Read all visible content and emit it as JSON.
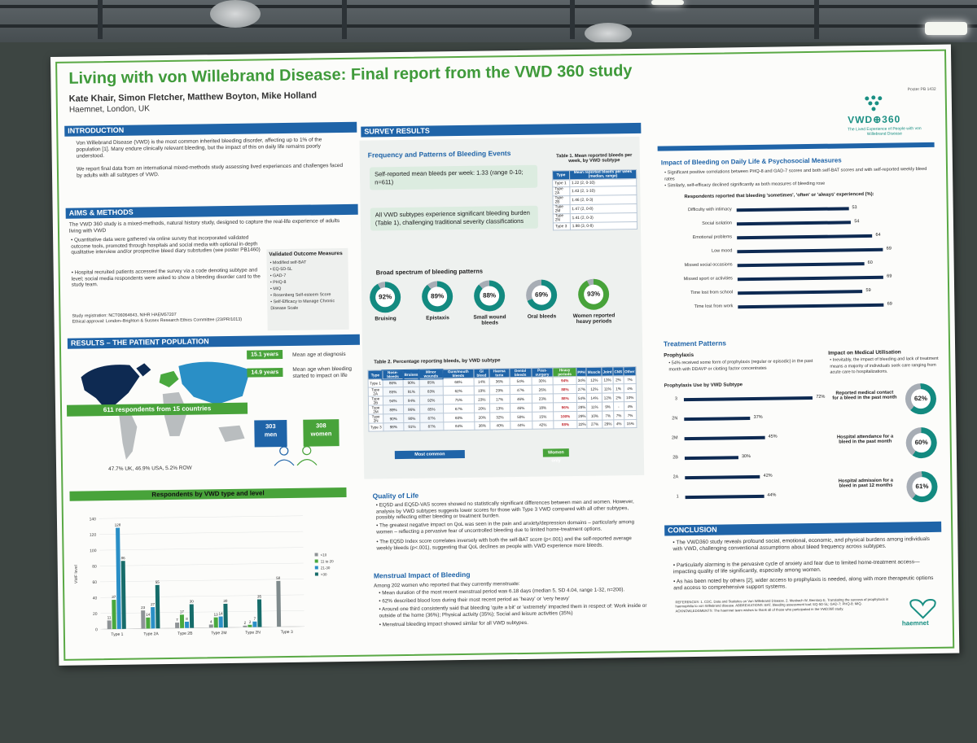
{
  "poster": {
    "title": "Living with von Willebrand Disease: Final report from the VWD 360 study",
    "authors": "Kate Khair, Simon Fletcher, Matthew Boyton, Mike Holland",
    "affiliation": "Haemnet, London, UK",
    "poster_id": "Poster PB 1432",
    "logo_text": "VWD⊕360",
    "logo_sub": "The Lived Experience of People with von Willebrand Disease",
    "accent_green": "#48a33a",
    "accent_blue": "#1f64a8"
  },
  "intro": {
    "heading": "INTRODUCTION",
    "p1": "Von Willebrand Disease (VWD) is the most common inherited bleeding disorder, affecting up to 1% of the population [1]. Many endure clinically relevant bleeding, but the impact of this on daily life remains poorly understood.",
    "p2": "We report final data from an international mixed-methods study assessing lived experiences and challenges faced by adults with all subtypes of VWD."
  },
  "aims": {
    "heading": "AIMS & METHODS",
    "p1": "The VWD 360 study is a mixed-methods, natural history study, designed to capture the real-life experience of adults living with VWD",
    "b1": "Quantitative data were gathered via online survey that incorporated validated outcome tools, promoted through hospitals and social media with optional in-depth qualitative interview and/or prospective bleed diary substudies (see poster PB1460)",
    "b2": "Hospital recruited patients accessed the survey via a code denoting subtype and level; social media respondents were asked to show a bleeding disorder card to the study team.",
    "measures_title": "Validated Outcome Measures",
    "measures": [
      "Modified self-BAT",
      "EQ-5D-5L",
      "GAD-7",
      "PHQ-8",
      "MIQ",
      "Rosenberg Self-esteem Score",
      "Self-Efficacy to Manage Chronic Disease Scale"
    ],
    "registration": "Study registration: NCT06064643, NIHR HAEM57207",
    "ethics": "Ethical approval: London–Brighton & Sussex Research Ethics Committee (23/PR/1013)"
  },
  "population": {
    "heading": "RESULTS – THE PATIENT POPULATION",
    "age_dx_value": "15.1 years",
    "age_dx_label": "Mean age at diagnosis",
    "age_impact_value": "14.9 years",
    "age_impact_label": "Mean age when bleeding started to impact on life",
    "respondents": "611 respondents from 15 countries",
    "men_n": "303",
    "men_label": "men",
    "women_n": "308",
    "women_label": "women",
    "split": "47.7% UK, 46.9% USA, 5.2% ROW"
  },
  "vwd_chart": {
    "heading": "Respondents by VWD type and level",
    "ylabel": "VWF level",
    "legend": [
      "<10",
      "11 to 20",
      "21-30",
      ">30"
    ],
    "colors": [
      "#8e9396",
      "#49a83e",
      "#2a8fc6",
      "#166c6a",
      "#7f8a8c"
    ],
    "categories": [
      "Type 1",
      "Type 2A",
      "Type 2B",
      "Type 2M",
      "Type 2N",
      "Type 3"
    ],
    "yticks": [
      "140",
      "120",
      "100",
      "80",
      "60",
      "40",
      "20",
      "0"
    ]
  },
  "chart_data": {
    "type": "bar",
    "title": "Respondents by VWD type and level",
    "ylabel": "VWF level",
    "categories": [
      "Type 1",
      "Type 2A",
      "Type 2B",
      "Type 2M",
      "Type 2N",
      "Type 3"
    ],
    "ylim": [
      0,
      140
    ],
    "legend_position": "right",
    "series": [
      {
        "name": "<10",
        "values": [
          11,
          23,
          7,
          4,
          2,
          58
        ]
      },
      {
        "name": "11 to 20",
        "values": [
          37,
          14,
          17,
          13,
          3,
          0
        ]
      },
      {
        "name": "21-30",
        "values": [
          128,
          27,
          8,
          14,
          7,
          0
        ]
      },
      {
        "name": ">30",
        "values": [
          86,
          55,
          30,
          30,
          35,
          0
        ]
      }
    ]
  },
  "survey": {
    "heading": "SURVEY RESULTS",
    "freq_title": "Frequency and Patterns of Bleeding Events",
    "box1": "Self-reported mean bleeds per week: 1.33 (range 0-10; n=611)",
    "box2": "All VWD subtypes experience significant bleeding burden (Table 1), challenging traditional severity classifications",
    "table1_title": "Table 1. Mean reported bleeds per week, by VWD subtype",
    "table1_head": [
      "Type",
      "Mean reported bleeds per week (median, range)"
    ],
    "table1_rows": [
      [
        "Type 1",
        "1.22 (2, 0-10)"
      ],
      [
        "Type 2A",
        "1.43 (2, 1-10)"
      ],
      [
        "Type 2B",
        "1.46 (2, 0-3)"
      ],
      [
        "Type 2M",
        "1.47 (2, 0-8)"
      ],
      [
        "Type 2N",
        "1.41 (2, 0-3)"
      ],
      [
        "Type 3",
        "1.98 (3, 0-8)"
      ]
    ],
    "spectrum_title": "Broad spectrum of bleeding patterns",
    "donuts": [
      {
        "value": "92%",
        "label": "Bruising",
        "pct": 92
      },
      {
        "value": "89%",
        "label": "Epistaxis",
        "pct": 89
      },
      {
        "value": "88%",
        "label": "Small wound bleeds",
        "pct": 88
      },
      {
        "value": "69%",
        "label": "Oral bleeds",
        "pct": 69
      },
      {
        "value": "93%",
        "label": "Women reported heavy periods",
        "pct": 93
      }
    ],
    "table2_title": "Table 2. Percentage reporting bleeds, by VWD subtype",
    "table2_head": [
      "Type",
      "Nose-bleeds",
      "Bruises",
      "Minor wounds",
      "Gum/mouth bleeds",
      "GI bleed",
      "Haema turia",
      "Dental bleeds",
      "Post-surgery",
      "Heavy periods",
      "PPH",
      "Muscle",
      "Joint",
      "CNS",
      "Other"
    ],
    "table2_rows": [
      [
        "Type 1",
        "86%",
        "90%",
        "85%",
        "66%",
        "14%",
        "36%",
        "54%",
        "30%",
        "94%",
        "34%",
        "12%",
        "13%",
        "2%",
        "7%"
      ],
      [
        "Type 2A",
        "85%",
        "91%",
        "83%",
        "62%",
        "19%",
        "29%",
        "47%",
        "26%",
        "88%",
        "27%",
        "12%",
        "11%",
        "1%",
        "4%"
      ],
      [
        "Type 2B",
        "94%",
        "94%",
        "92%",
        "75%",
        "23%",
        "17%",
        "46%",
        "23%",
        "88%",
        "54%",
        "14%",
        "12%",
        "2%",
        "10%"
      ],
      [
        "Type 2M",
        "89%",
        "96%",
        "85%",
        "67%",
        "20%",
        "13%",
        "46%",
        "18%",
        "96%",
        "28%",
        "11%",
        "9%",
        "-",
        "4%"
      ],
      [
        "Type 2N",
        "90%",
        "90%",
        "87%",
        "60%",
        "20%",
        "32%",
        "50%",
        "15%",
        "100%",
        "29%",
        "10%",
        "7%",
        "7%",
        "7%"
      ],
      [
        "Type 3",
        "98%",
        "91%",
        "87%",
        "84%",
        "38%",
        "40%",
        "44%",
        "42%",
        "88%",
        "22%",
        "27%",
        "29%",
        "4%",
        "15%"
      ]
    ],
    "most_common": "Most common",
    "women_only": "Women only"
  },
  "qol": {
    "heading": "Quality of Life",
    "b1": "EQ5D and EQ5D-VAS scores showed no statistically significant differences between men and women. However, analysis by VWD subtypes suggests lower scores for those with Type 3 VWD compared with all other subtypes, possibly reflecting either bleeding or treatment burden.",
    "b2": "The greatest negative impact on QoL was seen in the pain and anxiety/depression domains – particularly among women – reflecting a pervasive fear of uncontrolled bleeding due to limited home-treatment options.",
    "b3": "The EQ5D Index score correlates inversely with both the self-BAT score (p<.001) and the self-reported average weekly bleeds (p<.001), suggesting that QoL declines as people with VWD experience more bleeds."
  },
  "menstrual": {
    "heading": "Menstrual Impact of Bleeding",
    "intro": "Among 202 women who reported that they currently menstruate:",
    "b1": "Mean duration of the most recent menstrual period was 6.18 days (median 5, SD 4.04, range 1-32, n=200).",
    "b2": "62% described blood loss during their most recent period as 'heavy' or 'very heavy'",
    "b3": "Around one third consistently said that bleeding 'quite a bit' or 'extremely' impacted them in respect of: Work inside or outside of the home (36%); Physical activity (35%); Social and leisure activities (35%)",
    "b4": "Menstrual bleeding impact showed similar for all VWD subtypes."
  },
  "impact": {
    "heading": "Impact of Bleeding on Daily Life & Psychosocial Measures",
    "b1": "Significant positive correlations between PHQ-8 and GAD-7 scores and both self-BAT scores and with self-reported weekly bleed rates",
    "b2": "Similarly, self-efficacy declined significantly as both measures of bleeding rose",
    "chart_title": "Respondents reported that bleeding 'sometimes', 'often' or 'always' experienced (%):",
    "items": [
      {
        "label": "Difficulty with intimacy",
        "value": 53
      },
      {
        "label": "Social isolation",
        "value": 54
      },
      {
        "label": "Emotional problems",
        "value": 64
      },
      {
        "label": "Low mood",
        "value": 69
      },
      {
        "label": "Missed social occasions",
        "value": 60
      },
      {
        "label": "Missed sport or activities",
        "value": 69
      },
      {
        "label": "Time lost from school",
        "value": 59
      },
      {
        "label": "Time lost from work",
        "value": 69
      }
    ]
  },
  "treatment": {
    "heading": "Treatment Patterns",
    "proph_title": "Prophylaxis",
    "proph_b1": "54% received some form of prophylaxis (regular or episodic) in the past month with DDAVP or clotting factor concentrates",
    "proph_chart_title": "Prophylaxis Use by VWD Subtype",
    "proph": [
      {
        "label": "3",
        "value": 72,
        "text": "72%"
      },
      {
        "label": "2N",
        "value": 37,
        "text": "37%"
      },
      {
        "label": "2M",
        "value": 45,
        "text": "45%"
      },
      {
        "label": "2B",
        "value": 30,
        "text": "30%"
      },
      {
        "label": "2A",
        "value": 42,
        "text": "42%"
      },
      {
        "label": "1",
        "value": 44,
        "text": "44%"
      }
    ],
    "util_title": "Impact on Medical Utilisation",
    "util_b1": "Inevitably, the impact of bleeding and lack of treatment means a majority of individuals seek care ranging from acute care to hospitalizations.",
    "util": [
      {
        "label": "Reported medical contact for a bleed in the past month",
        "value": "62%",
        "pct": 62
      },
      {
        "label": "Hospital attendance for a bleed in the past month",
        "value": "60%",
        "pct": 60
      },
      {
        "label": "Hospital admission for a bleed in past 12 months",
        "value": "61%",
        "pct": 61
      }
    ]
  },
  "conclusion": {
    "heading": "CONCLUSION",
    "b1": "The VWD360 study reveals profound social, emotional, economic, and physical burdens among individuals with VWD, challenging conventional assumptions about bleed frequency across subtypes.",
    "b2": "Particularly alarming is the pervasive cycle of anxiety and fear due to limited home-treatment access—impacting quality of life significantly, especially among women.",
    "b3": "As has been noted by others [2], wider access to prophylaxis is needed, along with more therapeutic options and access to comprehensive support systems.",
    "refs": "REFERENCES: 1. CDC. Data and Statistics on Von Willebrand Disease. 2. Mesbach W, Bemtorp E. Translating the success of prophylaxis in haemophilia to von Willebrand disease. ABBREVIATIONS: BAT, bleeding assessment tool; EQ-5D-5L; GAD-7; PHQ-8; MIQ. ACKNOWLEDGMENTS: The haemnet team wishes to thank all of those who participated in the VWD360 study.",
    "haemnet": "haemnet"
  }
}
